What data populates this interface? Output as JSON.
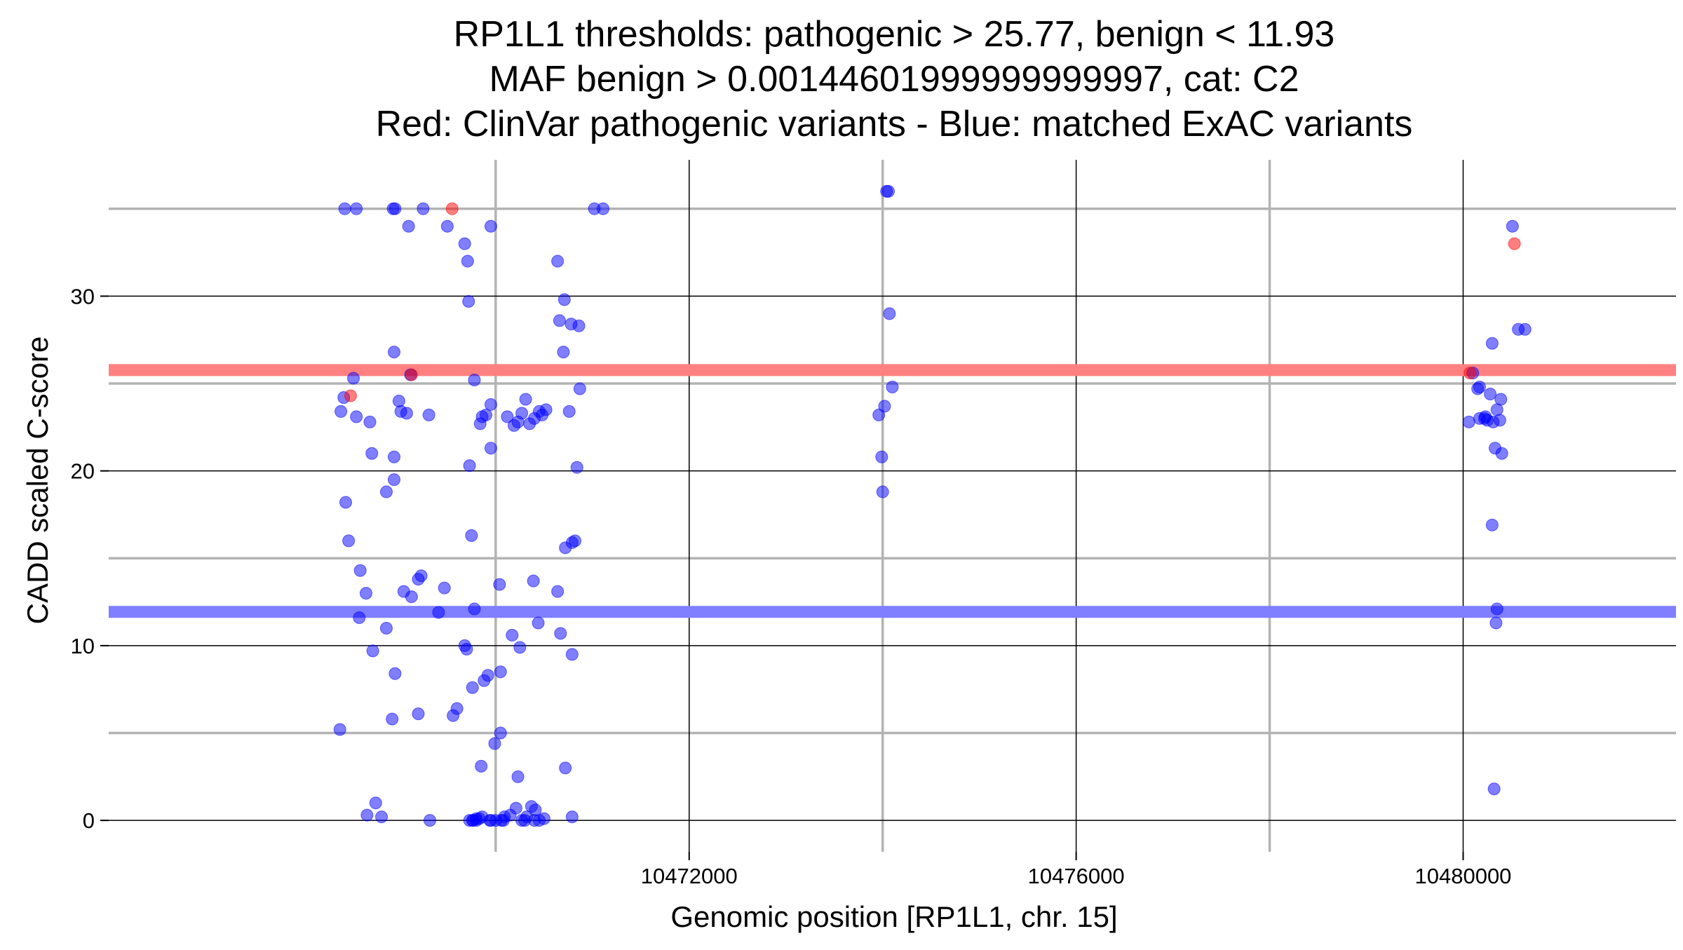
{
  "chart_data": {
    "type": "scatter",
    "title_lines": [
      "RP1L1 thresholds: pathogenic > 25.77, benign < 11.93",
      "MAF benign > 0.00144601999999999997, cat: C2",
      "Red: ClinVar pathogenic variants - Blue: matched ExAC variants"
    ],
    "xlabel": "Genomic position [RP1L1, chr. 15]",
    "ylabel": "CADD scaled C-score",
    "xlim": [
      10466000,
      10482200
    ],
    "ylim": [
      -1.8,
      37.8
    ],
    "x_major_ticks": [
      10472000,
      10476000,
      10480000
    ],
    "x_minor_ticks": [
      10470000,
      10474000,
      10478000
    ],
    "x_tick_labels": [
      "10472000",
      "10476000",
      "10480000"
    ],
    "y_major_ticks": [
      0,
      10,
      20,
      30
    ],
    "y_minor_ticks": [
      5,
      15,
      25,
      35
    ],
    "y_tick_labels": [
      "0",
      "10",
      "20",
      "30"
    ],
    "grid": true,
    "thresholds": [
      {
        "name": "pathogenic",
        "value": 25.77,
        "color": "#ff8080"
      },
      {
        "name": "benign",
        "value": 11.93,
        "color": "#7f7fff"
      }
    ],
    "series": [
      {
        "color": "#0000ff",
        "points": [
          [
            10468440,
            35
          ],
          [
            10468560,
            35
          ],
          [
            10468940,
            35
          ],
          [
            10468960,
            35
          ],
          [
            10469250,
            35
          ],
          [
            10471020,
            35
          ],
          [
            10471110,
            35
          ],
          [
            10469100,
            34
          ],
          [
            10469500,
            34
          ],
          [
            10469950,
            34
          ],
          [
            10469680,
            33
          ],
          [
            10469710,
            32
          ],
          [
            10470640,
            32
          ],
          [
            10469720,
            29.7
          ],
          [
            10470710,
            29.8
          ],
          [
            10470780,
            28.4
          ],
          [
            10470860,
            28.3
          ],
          [
            10470660,
            28.6
          ],
          [
            10468950,
            26.8
          ],
          [
            10470700,
            26.8
          ],
          [
            10468530,
            25.3
          ],
          [
            10469120,
            25.5
          ],
          [
            10469780,
            25.2
          ],
          [
            10470870,
            24.7
          ],
          [
            10468430,
            24.2
          ],
          [
            10469000,
            24.0
          ],
          [
            10469950,
            23.8
          ],
          [
            10470310,
            24.1
          ],
          [
            10468400,
            23.4
          ],
          [
            10468560,
            23.1
          ],
          [
            10468700,
            22.8
          ],
          [
            10469020,
            23.4
          ],
          [
            10469080,
            23.3
          ],
          [
            10469310,
            23.2
          ],
          [
            10469860,
            23.1
          ],
          [
            10469840,
            22.7
          ],
          [
            10469900,
            23.2
          ],
          [
            10470120,
            23.1
          ],
          [
            10470190,
            22.6
          ],
          [
            10470230,
            22.8
          ],
          [
            10470270,
            23.3
          ],
          [
            10470350,
            22.7
          ],
          [
            10470400,
            23.0
          ],
          [
            10470450,
            23.4
          ],
          [
            10470520,
            23.5
          ],
          [
            10470480,
            23.2
          ],
          [
            10470760,
            23.4
          ],
          [
            10468720,
            21.0
          ],
          [
            10468950,
            20.8
          ],
          [
            10469730,
            20.3
          ],
          [
            10469950,
            21.3
          ],
          [
            10470840,
            20.2
          ],
          [
            10468950,
            19.5
          ],
          [
            10468870,
            18.8
          ],
          [
            10468450,
            18.2
          ],
          [
            10469750,
            16.3
          ],
          [
            10468480,
            16.0
          ],
          [
            10470790,
            15.9
          ],
          [
            10470820,
            16.0
          ],
          [
            10470720,
            15.6
          ],
          [
            10468600,
            14.3
          ],
          [
            10469230,
            14.0
          ],
          [
            10469200,
            13.8
          ],
          [
            10469470,
            13.3
          ],
          [
            10469050,
            13.1
          ],
          [
            10469130,
            12.8
          ],
          [
            10468660,
            13.0
          ],
          [
            10470040,
            13.5
          ],
          [
            10470390,
            13.7
          ],
          [
            10470640,
            13.1
          ],
          [
            10469410,
            11.9
          ],
          [
            10469780,
            12.1
          ],
          [
            10468590,
            11.6
          ],
          [
            10470440,
            11.3
          ],
          [
            10468870,
            11.0
          ],
          [
            10470170,
            10.6
          ],
          [
            10470670,
            10.7
          ],
          [
            10470250,
            9.9
          ],
          [
            10469680,
            10.0
          ],
          [
            10469700,
            9.8
          ],
          [
            10468730,
            9.7
          ],
          [
            10470790,
            9.5
          ],
          [
            10468960,
            8.4
          ],
          [
            10469920,
            8.3
          ],
          [
            10470050,
            8.5
          ],
          [
            10469880,
            8.0
          ],
          [
            10469760,
            7.6
          ],
          [
            10469600,
            6.4
          ],
          [
            10469200,
            6.1
          ],
          [
            10469560,
            6.0
          ],
          [
            10468930,
            5.8
          ],
          [
            10468390,
            5.2
          ],
          [
            10470050,
            5.0
          ],
          [
            10469990,
            4.4
          ],
          [
            10469850,
            3.1
          ],
          [
            10470230,
            2.5
          ],
          [
            10470720,
            3.0
          ],
          [
            10468760,
            1.0
          ],
          [
            10468670,
            0.3
          ],
          [
            10468820,
            0.2
          ],
          [
            10469320,
            0.0
          ],
          [
            10469730,
            0.0
          ],
          [
            10469760,
            0.0
          ],
          [
            10469800,
            0.1
          ],
          [
            10469860,
            0.2
          ],
          [
            10469940,
            0.0
          ],
          [
            10470000,
            0.0
          ],
          [
            10470090,
            0.2
          ],
          [
            10470150,
            0.3
          ],
          [
            10470210,
            0.7
          ],
          [
            10470270,
            0.0
          ],
          [
            10470320,
            0.2
          ],
          [
            10470370,
            0.8
          ],
          [
            10470410,
            0.6
          ],
          [
            10470500,
            0.1
          ],
          [
            10470790,
            0.2
          ],
          [
            10470080,
            0.0
          ],
          [
            10470060,
            0.0
          ],
          [
            10469950,
            0.0
          ],
          [
            10469830,
            0.1
          ],
          [
            10469770,
            0.0
          ],
          [
            10469800,
            0.0
          ],
          [
            10470300,
            0.0
          ],
          [
            10470400,
            0.0
          ],
          [
            10470450,
            0.0
          ],
          [
            10474040,
            36
          ],
          [
            10474060,
            36
          ],
          [
            10474070,
            29.0
          ],
          [
            10474100,
            24.8
          ],
          [
            10474020,
            23.7
          ],
          [
            10473960,
            23.2
          ],
          [
            10473990,
            20.8
          ],
          [
            10474000,
            18.8
          ],
          [
            10480510,
            34
          ],
          [
            10480300,
            27.3
          ],
          [
            10480570,
            28.1
          ],
          [
            10480640,
            28.1
          ],
          [
            10480100,
            25.6
          ],
          [
            10480150,
            24.7
          ],
          [
            10480170,
            24.8
          ],
          [
            10480280,
            24.4
          ],
          [
            10480390,
            24.1
          ],
          [
            10480350,
            23.5
          ],
          [
            10480220,
            23.0
          ],
          [
            10480230,
            23.1
          ],
          [
            10480170,
            23.0
          ],
          [
            10480250,
            22.9
          ],
          [
            10480310,
            22.8
          ],
          [
            10480380,
            22.9
          ],
          [
            10480060,
            22.8
          ],
          [
            10480330,
            21.3
          ],
          [
            10480400,
            21.0
          ],
          [
            10480300,
            16.9
          ],
          [
            10480350,
            12.1
          ],
          [
            10480340,
            11.3
          ],
          [
            10480320,
            1.8
          ]
        ]
      },
      {
        "color": "#ff0000",
        "points": [
          [
            10469550,
            35
          ],
          [
            10468500,
            24.3
          ],
          [
            10469130,
            25.5
          ],
          [
            10480530,
            33
          ],
          [
            10480070,
            25.6
          ]
        ]
      }
    ]
  }
}
